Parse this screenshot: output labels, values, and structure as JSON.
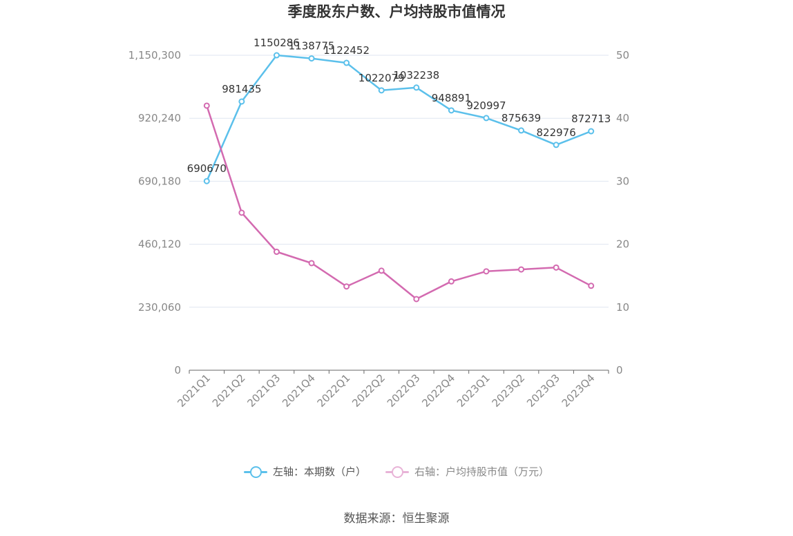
{
  "chart_data": {
    "type": "line",
    "title": "季度股东户数、户均持股市值情况",
    "categories": [
      "2021Q1",
      "2021Q2",
      "2021Q3",
      "2021Q4",
      "2022Q1",
      "2022Q2",
      "2022Q3",
      "2022Q4",
      "2023Q1",
      "2023Q2",
      "2023Q3",
      "2023Q4"
    ],
    "series": [
      {
        "name": "左轴：本期数（户）",
        "axis": "left",
        "color": "#5bc0eb",
        "values": [
          690670,
          981435,
          1150286,
          1138775,
          1122452,
          1022079,
          1032238,
          948891,
          920997,
          875639,
          822976,
          872713
        ],
        "labels": [
          "690670",
          "981435",
          "1150286",
          "1138775",
          "1122452",
          "1022079",
          "1032238",
          "948891",
          "920997",
          "875639",
          "822976",
          "872713"
        ]
      },
      {
        "name": "右轴：户均持股市值（万元）",
        "axis": "right",
        "color": "#d36ab0",
        "values": [
          42.0,
          25.0,
          18.8,
          17.0,
          13.3,
          15.8,
          11.3,
          14.1,
          15.7,
          16.0,
          16.3,
          13.4
        ]
      }
    ],
    "left_axis": {
      "ylim": [
        0,
        1150300
      ],
      "ticks": [
        0,
        230060,
        460120,
        690180,
        920240,
        1150300
      ],
      "tick_labels": [
        "0",
        "230,060",
        "460,120",
        "690,180",
        "920,240",
        "1,150,300"
      ]
    },
    "right_axis": {
      "ylim": [
        0,
        50
      ],
      "ticks": [
        0,
        10,
        20,
        30,
        40,
        50
      ],
      "tick_labels": [
        "0",
        "10",
        "20",
        "30",
        "40",
        "50"
      ]
    },
    "grid": true,
    "legend": "bottom-center",
    "source": "数据来源：恒生聚源"
  }
}
